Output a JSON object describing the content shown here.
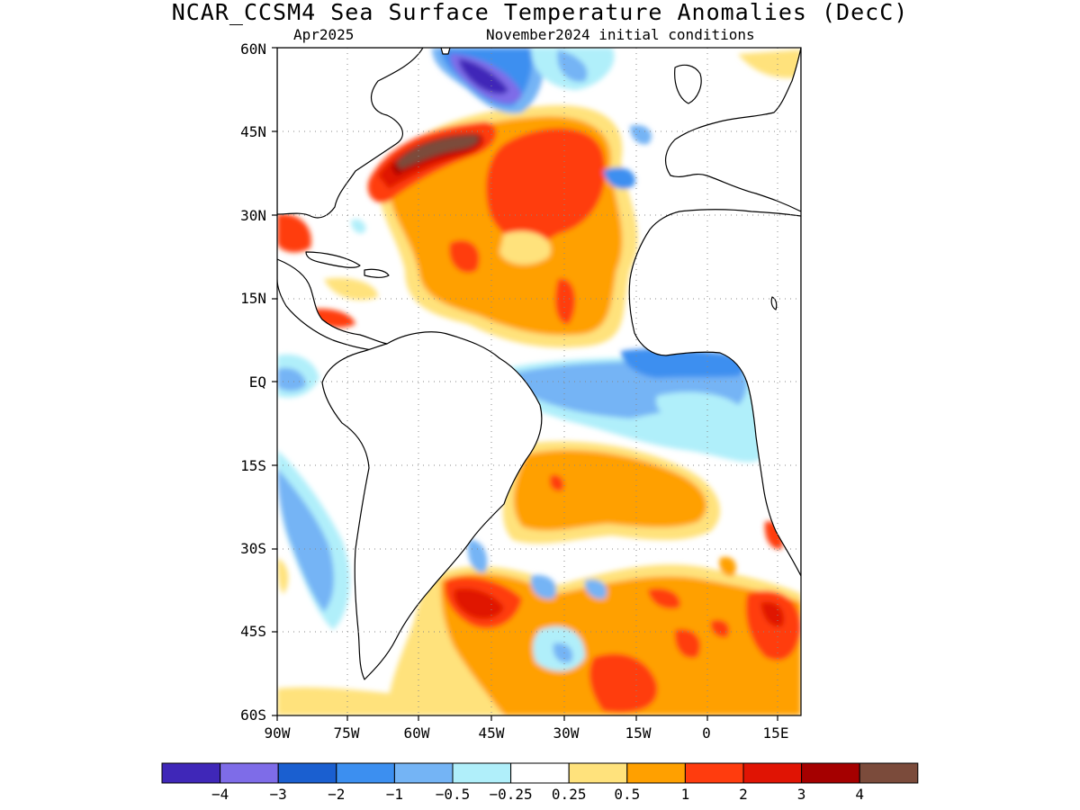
{
  "title": "NCAR_CCSM4 Sea Surface Temperature Anomalies (DecC)",
  "subtitle_left": "Apr2025",
  "subtitle_right": "November2024 initial conditions",
  "lat_labels": [
    "60N",
    "45N",
    "30N",
    "15N",
    "EQ",
    "15S",
    "30S",
    "45S",
    "60S"
  ],
  "lon_labels": [
    "90W",
    "75W",
    "60W",
    "45W",
    "30W",
    "15W",
    "0",
    "15E"
  ],
  "colorbar": {
    "colors": [
      "#3f27b8",
      "#7e6ce8",
      "#1a5fd0",
      "#3c8ff0",
      "#74b4f5",
      "#b0effa",
      "#ffffff",
      "#ffe27c",
      "#ffa000",
      "#ff3c0e",
      "#e01404",
      "#a50000",
      "#7b4b3b"
    ],
    "labels": [
      "−4",
      "−3",
      "−2",
      "−1",
      "−0.5",
      "−0.25",
      "0.25",
      "0.5",
      "1",
      "2",
      "3",
      "4"
    ]
  },
  "palette": {
    "orange": "#ffa000",
    "yellow": "#ffe27c",
    "red": "#ff3c0e",
    "darkred": "#e01404",
    "maroon": "#a50000",
    "brown": "#7b4b3b",
    "lightblue": "#74b4f5",
    "paleblue": "#b0effa",
    "blue": "#3c8ff0",
    "darkblue": "#1a5fd0",
    "purple": "#7e6ce8",
    "deeppurple": "#3f27b8"
  }
}
